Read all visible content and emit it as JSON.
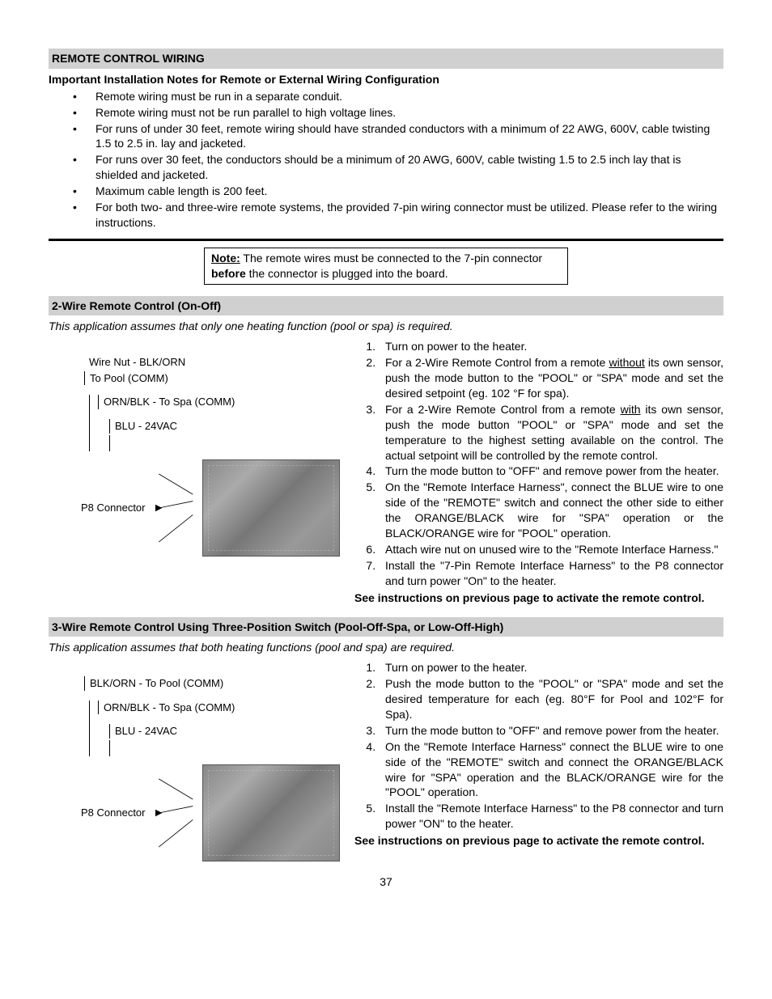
{
  "section1": {
    "header": "REMOTE CONTROL WIRING",
    "subtitle": "Important Installation Notes for Remote or External Wiring Configuration",
    "bullets": [
      "Remote wiring must be run in a separate conduit.",
      "Remote wiring must not be run parallel to high voltage lines.",
      "For runs of under 30 feet, remote wiring should have stranded conductors with a minimum of 22 AWG, 600V, cable twisting 1.5 to 2.5 in. lay and jacketed.",
      "For runs over 30 feet, the conductors should be a minimum of 20 AWG, 600V, cable twisting 1.5 to 2.5 inch lay that is shielded and jacketed.",
      "Maximum cable length is 200 feet.",
      "For both two- and three-wire remote systems, the provided 7-pin wiring connector must be utilized. Please refer to the wiring instructions."
    ]
  },
  "note": {
    "label": "Note:",
    "text_before": " The remote wires must be connected to the 7-pin connector ",
    "bold": "before",
    "text_after": " the connector is plugged into the board."
  },
  "section2": {
    "header": "2-Wire Remote Control (On-Off)",
    "assumption": "This application assumes that only one heating function (pool or spa) is required.",
    "diagram": {
      "label1a": "Wire Nut - BLK/ORN",
      "label1b": "To Pool (COMM)",
      "label2": "ORN/BLK - To Spa (COMM)",
      "label3": "BLU - 24VAC",
      "p8": "P8 Connector"
    },
    "steps": [
      {
        "text": "Turn on power to the heater."
      },
      {
        "parts": [
          {
            "t": "For a 2-Wire Remote Control from a remote "
          },
          {
            "t": "without",
            "u": true
          },
          {
            "t": " its own sensor, push the mode button to the \"POOL\" or \"SPA\" mode and set the desired setpoint (eg. 102 °F for spa)."
          }
        ]
      },
      {
        "parts": [
          {
            "t": "For a 2-Wire Remote Control from a remote "
          },
          {
            "t": "with",
            "u": true
          },
          {
            "t": " its own sensor, push the mode button \"POOL\" or \"SPA\" mode and set the temperature to the highest setting available on the control. The actual setpoint will be controlled by the remote control."
          }
        ]
      },
      {
        "text": "Turn the mode button to \"OFF\" and remove power from the heater."
      },
      {
        "text": "On the \"Remote Interface Harness\", connect the BLUE wire to one side of the \"REMOTE\" switch and connect the other side to either the ORANGE/BLACK wire for \"SPA\" operation or the BLACK/ORANGE wire for \"POOL\" operation."
      },
      {
        "text": "Attach wire nut on unused wire to the \"Remote Interface Harness.\""
      },
      {
        "text": "Install the \"7-Pin Remote Interface Harness\" to the P8 connector and turn power \"On\" to the heater."
      }
    ],
    "footer": "See instructions on previous page to activate the remote control."
  },
  "section3": {
    "header": "3-Wire Remote Control Using Three-Position Switch (Pool-Off-Spa, or Low-Off-High)",
    "assumption": "This application assumes that both heating functions (pool and spa) are required.",
    "diagram": {
      "label1": "BLK/ORN - To Pool (COMM)",
      "label2": "ORN/BLK - To Spa (COMM)",
      "label3": "BLU - 24VAC",
      "p8": "P8 Connector"
    },
    "steps": [
      {
        "text": "Turn on power to the heater."
      },
      {
        "text": "Push the mode button to the \"POOL\" or \"SPA\" mode and set the desired temperature for each (eg. 80°F for Pool and 102°F for Spa)."
      },
      {
        "text": "Turn the mode button to \"OFF\" and remove power from the heater."
      },
      {
        "text": "On the \"Remote Interface Harness\" connect the BLUE wire to one side of the \"REMOTE\" switch and connect the ORANGE/BLACK wire for \"SPA\" operation and the BLACK/ORANGE wire for the \"POOL\" operation."
      },
      {
        "text": "Install the \"Remote Interface Harness\" to the P8 connector and turn power \"ON\" to the heater."
      }
    ],
    "footer": "See instructions on previous page to activate the remote control."
  },
  "page_number": "37"
}
